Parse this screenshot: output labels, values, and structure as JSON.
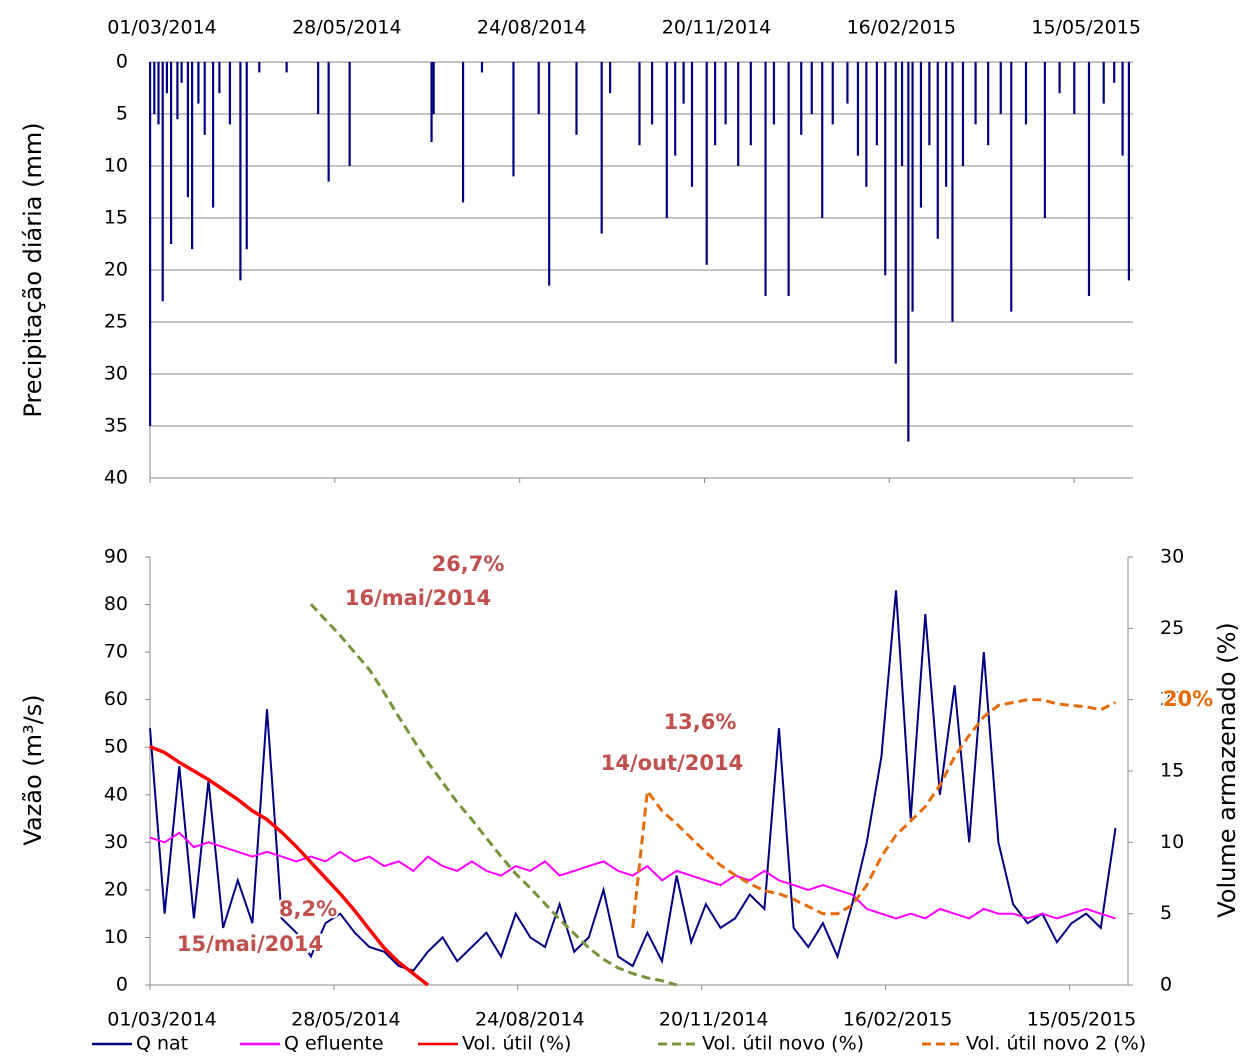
{
  "chart_data": [
    {
      "type": "bar",
      "y_label": "Precipitação diária (mm)",
      "color": "#000080",
      "y_inverted": true,
      "grid": true,
      "xaxis": "top",
      "xlim": [
        "01/03/2014",
        "12/06/2015"
      ],
      "xticks": [
        "01/03/2014",
        "28/05/2014",
        "24/08/2014",
        "20/11/2014",
        "16/02/2015",
        "15/05/2015"
      ],
      "ylim": [
        0,
        40
      ],
      "yticks": [
        0,
        5,
        10,
        15,
        20,
        25,
        30,
        35,
        40
      ],
      "x": [
        "01/03/2014",
        "03/03/2014",
        "05/03/2014",
        "07/03/2014",
        "09/03/2014",
        "11/03/2014",
        "14/03/2014",
        "16/03/2014",
        "19/03/2014",
        "21/03/2014",
        "24/03/2014",
        "27/03/2014",
        "31/03/2014",
        "03/04/2014",
        "08/04/2014",
        "13/04/2014",
        "16/04/2014",
        "22/04/2014",
        "05/05/2014",
        "20/05/2014",
        "25/05/2014",
        "04/06/2014",
        "13/07/2014",
        "14/07/2014",
        "28/07/2014",
        "06/08/2014",
        "21/08/2014",
        "02/09/2014",
        "07/09/2014",
        "20/09/2014",
        "02/10/2014",
        "06/10/2014",
        "20/10/2014",
        "26/10/2014",
        "02/11/2014",
        "06/11/2014",
        "10/11/2014",
        "14/11/2014",
        "21/11/2014",
        "25/11/2014",
        "30/11/2014",
        "06/12/2014",
        "12/12/2014",
        "19/12/2014",
        "23/12/2014",
        "30/12/2014",
        "05/01/2015",
        "10/01/2015",
        "15/01/2015",
        "20/01/2015",
        "27/01/2015",
        "01/02/2015",
        "05/02/2015",
        "10/02/2015",
        "14/02/2015",
        "19/02/2015",
        "22/02/2015",
        "25/02/2015",
        "27/02/2015",
        "03/03/2015",
        "07/03/2015",
        "11/03/2015",
        "15/03/2015",
        "18/03/2015",
        "23/03/2015",
        "29/03/2015",
        "04/04/2015",
        "10/04/2015",
        "15/04/2015",
        "22/04/2015",
        "01/05/2015",
        "08/05/2015",
        "15/05/2015",
        "22/05/2015",
        "29/05/2015",
        "03/06/2015",
        "07/06/2015",
        "10/06/2015"
      ],
      "values": [
        35,
        5,
        6,
        23,
        3,
        17.5,
        5.5,
        2,
        13,
        18,
        4,
        7,
        14,
        3,
        6,
        21,
        18,
        1,
        1,
        5,
        11.5,
        10,
        7.7,
        5,
        13.5,
        1,
        11,
        5,
        21.5,
        7,
        16.5,
        3,
        8,
        6,
        15,
        9,
        4,
        12,
        19.5,
        8,
        6,
        10,
        8,
        22.5,
        6,
        22.5,
        7,
        5,
        15,
        6,
        4,
        9,
        12,
        8,
        20.5,
        29,
        10,
        36.5,
        24,
        14,
        8,
        17,
        12,
        25,
        10,
        6,
        8,
        5,
        24,
        6,
        15,
        3,
        5,
        22.5,
        4,
        2,
        9,
        21
      ]
    },
    {
      "type": "line",
      "y_label": "Vazão (m³/s)",
      "y2_label": "Volume armazenado (%)",
      "legend": "bottom",
      "xlim": [
        "01/03/2014",
        "12/06/2015"
      ],
      "xticks": [
        "01/03/2014",
        "28/05/2014",
        "24/08/2014",
        "20/11/2014",
        "16/02/2015",
        "15/05/2015"
      ],
      "ylim": [
        0,
        90
      ],
      "yticks": [
        0,
        10,
        20,
        30,
        40,
        50,
        60,
        70,
        80,
        90
      ],
      "y2lim": [
        0,
        30
      ],
      "y2ticks": [
        0,
        5,
        10,
        15,
        20,
        25,
        30
      ],
      "x": [
        "01/03/2014",
        "08/03/2014",
        "15/03/2014",
        "22/03/2014",
        "29/03/2014",
        "05/04/2014",
        "12/04/2014",
        "19/04/2014",
        "26/04/2014",
        "03/05/2014",
        "10/05/2014",
        "17/05/2014",
        "24/05/2014",
        "31/05/2014",
        "07/06/2014",
        "14/06/2014",
        "21/06/2014",
        "28/06/2014",
        "05/07/2014",
        "12/07/2014",
        "19/07/2014",
        "26/07/2014",
        "02/08/2014",
        "09/08/2014",
        "16/08/2014",
        "23/08/2014",
        "30/08/2014",
        "06/09/2014",
        "13/09/2014",
        "20/09/2014",
        "27/09/2014",
        "04/10/2014",
        "11/10/2014",
        "18/10/2014",
        "25/10/2014",
        "01/11/2014",
        "08/11/2014",
        "15/11/2014",
        "22/11/2014",
        "29/11/2014",
        "06/12/2014",
        "13/12/2014",
        "20/12/2014",
        "27/12/2014",
        "03/01/2015",
        "10/01/2015",
        "17/01/2015",
        "24/01/2015",
        "31/01/2015",
        "07/02/2015",
        "14/02/2015",
        "21/02/2015",
        "28/02/2015",
        "07/03/2015",
        "14/03/2015",
        "21/03/2015",
        "28/03/2015",
        "04/04/2015",
        "11/04/2015",
        "18/04/2015",
        "25/04/2015",
        "02/05/2015",
        "09/05/2015",
        "16/05/2015",
        "23/05/2015",
        "30/05/2015",
        "06/06/2015"
      ],
      "series": [
        {
          "name": "Q nat",
          "color": "#000080",
          "values": [
            54,
            15,
            46,
            14,
            43,
            12,
            22,
            13,
            58,
            14,
            11,
            6,
            13,
            15,
            11,
            8,
            7,
            4,
            3,
            7,
            10,
            5,
            8,
            11,
            6,
            15,
            10,
            8,
            17,
            7,
            10,
            20,
            6,
            4,
            11,
            5,
            23,
            9,
            17,
            12,
            14,
            19,
            16,
            54,
            12,
            8,
            13,
            6,
            17,
            30,
            48,
            83,
            35,
            78,
            40,
            63,
            30,
            70,
            30,
            17,
            13,
            15,
            9,
            13,
            15,
            12,
            33
          ]
        },
        {
          "name": "Q efluente",
          "color": "#ff00ff",
          "values": [
            31,
            30,
            32,
            29,
            30,
            29,
            28,
            27,
            28,
            27,
            26,
            27,
            26,
            28,
            26,
            27,
            25,
            26,
            24,
            27,
            25,
            24,
            26,
            24,
            23,
            25,
            24,
            26,
            23,
            24,
            25,
            26,
            24,
            23,
            25,
            22,
            24,
            23,
            22,
            21,
            23,
            22,
            24,
            22,
            21,
            20,
            21,
            20,
            19,
            16,
            15,
            14,
            15,
            14,
            16,
            15,
            14,
            16,
            15,
            15,
            14,
            15,
            14,
            15,
            16,
            15,
            14
          ]
        },
        {
          "name": "Vol. útil (%)",
          "color": "#ff0000",
          "axis": "y2",
          "line_style": "solid",
          "values": [
            16.7,
            16.3,
            15.6,
            15.0,
            14.4,
            13.7,
            13.0,
            12.2,
            11.6,
            10.7,
            9.7,
            8.6,
            7.5,
            6.4,
            5.2,
            3.9,
            2.6,
            1.6,
            0.8,
            0,
            null,
            null,
            null,
            null,
            null,
            null,
            null,
            null,
            null,
            null,
            null,
            null,
            null,
            null,
            null,
            null,
            null,
            null,
            null,
            null,
            null,
            null,
            null,
            null,
            null,
            null,
            null,
            null,
            null,
            null,
            null,
            null,
            null,
            null,
            null,
            null,
            null,
            null,
            null,
            null,
            null,
            null,
            null,
            null,
            null,
            null,
            null
          ]
        },
        {
          "name": "Vol. útil novo (%)",
          "color": "#77933c",
          "axis": "y2",
          "line_style": "dashed",
          "values": [
            null,
            null,
            null,
            null,
            null,
            null,
            null,
            null,
            null,
            null,
            null,
            26.7,
            25.6,
            24.5,
            23.3,
            22.1,
            20.5,
            18.8,
            17.2,
            15.6,
            14.2,
            12.8,
            11.6,
            10.3,
            9.0,
            7.8,
            6.8,
            5.7,
            4.6,
            3.6,
            2.6,
            1.8,
            1.2,
            0.8,
            0.5,
            0.3,
            0,
            null,
            null,
            null,
            null,
            null,
            null,
            null,
            null,
            null,
            null,
            null,
            null,
            null,
            null,
            null,
            null,
            null,
            null,
            null,
            null,
            null,
            null,
            null,
            null,
            null,
            null,
            null,
            null,
            null,
            null
          ]
        },
        {
          "name": "Vol. útil novo 2 (%)",
          "color": "#e46c0a",
          "axis": "y2",
          "line_style": "dashed",
          "values": [
            null,
            null,
            null,
            null,
            null,
            null,
            null,
            null,
            null,
            null,
            null,
            null,
            null,
            null,
            null,
            null,
            null,
            null,
            null,
            null,
            null,
            null,
            null,
            null,
            null,
            null,
            null,
            null,
            null,
            null,
            null,
            null,
            null,
            4.0,
            13.6,
            12.2,
            11.3,
            10.3,
            9.3,
            8.4,
            7.7,
            7.1,
            6.6,
            6.4,
            6.0,
            5.5,
            5.0,
            5.0,
            5.6,
            7.0,
            9.0,
            10.5,
            11.5,
            12.5,
            14.0,
            16.0,
            17.5,
            18.8,
            19.6,
            19.8,
            20.0,
            20.0,
            19.7,
            19.6,
            19.5,
            19.3,
            19.8
          ]
        }
      ],
      "annotations": [
        {
          "text": "26,7%",
          "color": "#c0504d"
        },
        {
          "text": "16/mai/2014",
          "color": "#c0504d"
        },
        {
          "text": "8,2%",
          "color": "#c0504d"
        },
        {
          "text": "15/mai/2014",
          "color": "#c0504d"
        },
        {
          "text": "13,6%",
          "color": "#c0504d"
        },
        {
          "text": "14/out/2014",
          "color": "#c0504d"
        },
        {
          "text": "20%",
          "color": "#e46c0a"
        }
      ]
    }
  ]
}
